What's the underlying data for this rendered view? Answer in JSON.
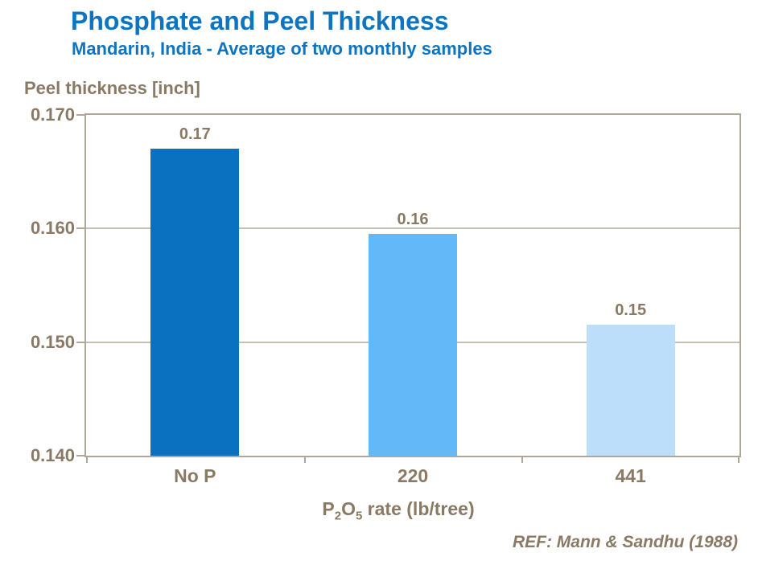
{
  "header": {
    "title": "Phosphate and Peel Thickness",
    "subtitle": "Mandarin, India - Average of two monthly samples"
  },
  "axis": {
    "y_title": "Peel thickness [inch]",
    "x_title": {
      "p1": "P",
      "s1": "2",
      "p2": "O",
      "s2": "5",
      "rest": " rate (lb/tree)"
    }
  },
  "reference": "REF: Mann & Sandhu (1988)",
  "colors": {
    "title_blue": "#0d74c2",
    "text_brown": "#8a7a64",
    "plot_border": "#b0a69a",
    "gridline": "#c7bfb3",
    "bar_dark_blue": "#0a70c0",
    "bar_medium_blue": "#63b8f8",
    "bar_light_blue": "#bcdefb"
  },
  "chart_data": {
    "type": "bar",
    "title": "Phosphate and Peel Thickness",
    "subtitle": "Mandarin, India - Average of two monthly samples",
    "categories": [
      "No P",
      "220",
      "441"
    ],
    "values": [
      0.167,
      0.1595,
      0.1515
    ],
    "data_labels": [
      "0.17",
      "0.16",
      "0.15"
    ],
    "bar_colors": [
      "#0a70c0",
      "#63b8f8",
      "#bcdefb"
    ],
    "xlabel": "P2O5 rate (lb/tree)",
    "ylabel": "Peel thickness [inch]",
    "ylim": [
      0.14,
      0.17
    ],
    "yticks": [
      0.14,
      0.15,
      0.16,
      0.17
    ],
    "ytick_labels": [
      "0.140",
      "0.150",
      "0.160",
      "0.170"
    ],
    "grid": "horizontal",
    "legend": "none",
    "reference": "REF: Mann & Sandhu (1988)"
  }
}
